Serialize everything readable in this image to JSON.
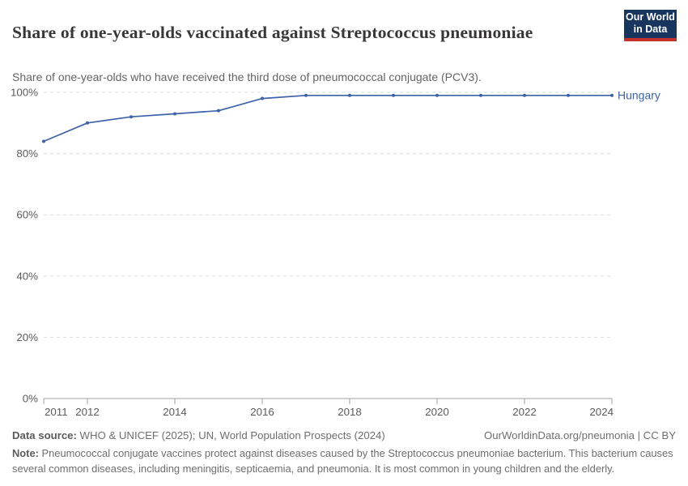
{
  "header": {
    "logo": {
      "line1": "Our World",
      "line2": "in Data",
      "bg_color": "#18355e",
      "bar_color": "#c5302c"
    }
  },
  "chart_data": {
    "type": "line",
    "title": "Share of one-year-olds vaccinated against Streptococcus pneumoniae",
    "subtitle": "Share of one-year-olds who have received the third dose of pneumococcal conjugate (PCV3).",
    "x": [
      2011,
      2012,
      2013,
      2014,
      2015,
      2016,
      2017,
      2018,
      2019,
      2020,
      2021,
      2022,
      2023,
      2024
    ],
    "series": [
      {
        "name": "Hungary",
        "values": [
          84,
          90,
          92,
          93,
          94,
          98,
          99,
          99,
          99,
          99,
          99,
          99,
          99,
          99
        ],
        "color": "#3d62a7"
      }
    ],
    "ylim": [
      0,
      100
    ],
    "yticks": [
      0,
      20,
      40,
      60,
      80,
      100
    ],
    "ytick_suffix": "%",
    "xticks": [
      2011,
      2012,
      2014,
      2016,
      2018,
      2020,
      2022,
      2024
    ],
    "grid": "horizontal-dashed",
    "legend_position": "end-of-line",
    "colors": {
      "gridline": "#dcdcdc",
      "axis_line": "#a3a3a3",
      "tick_label": "#5b5b5b"
    }
  },
  "footer": {
    "source_label": "Data source:",
    "source_text": " WHO & UNICEF (2025); UN, World Population Prospects (2024)",
    "rights": "OurWorldinData.org/pneumonia | CC BY",
    "note_label": "Note:",
    "note_text": " Pneumococcal conjugate vaccines protect against diseases caused by the Streptococcus pneumoniae bacterium. This bacterium causes several common diseases, including meningitis, septicaemia, and pneumonia. It is most common in young children and the elderly."
  }
}
